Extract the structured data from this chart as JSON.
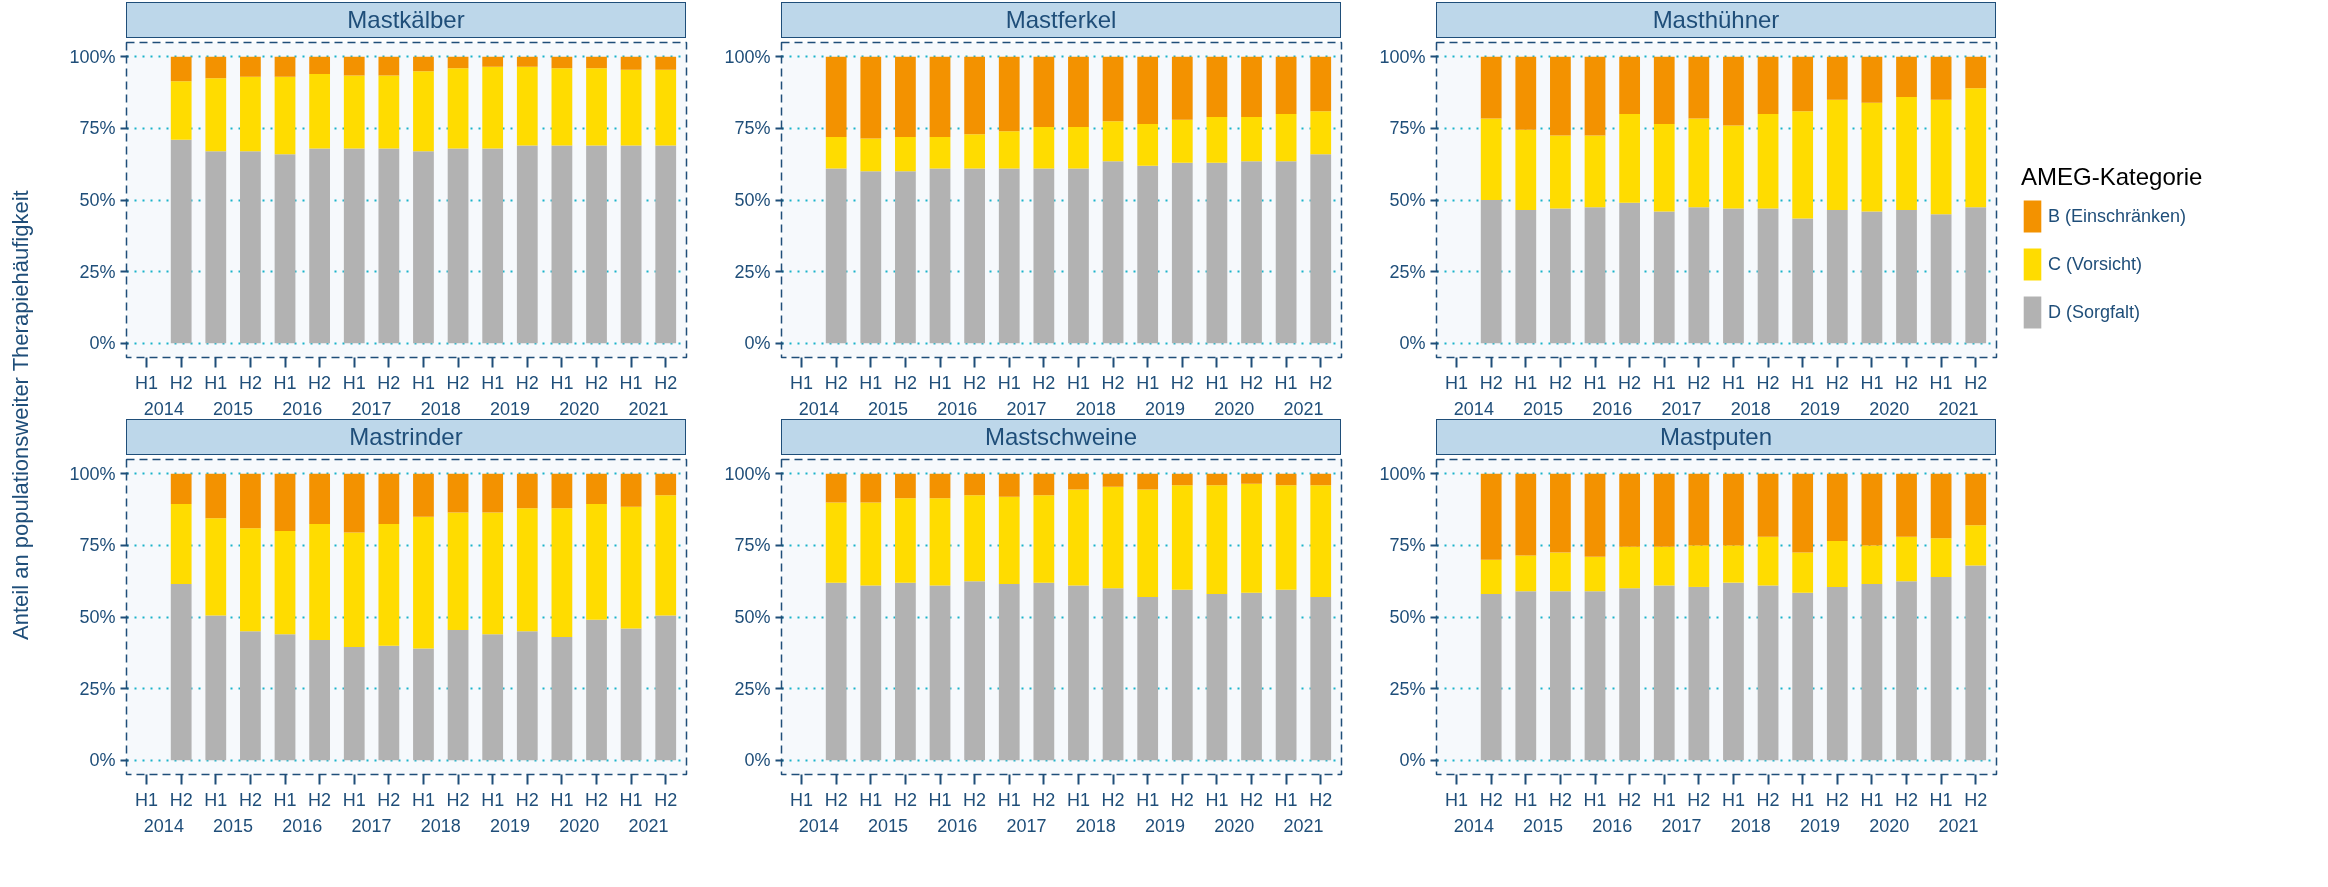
{
  "chart_data": [
    {
      "type": "bar",
      "stacked": true,
      "title": "Mastkälber",
      "ylabel": "Anteil an populationsweiter Therapiehäufigkeit",
      "grid": "y",
      "ylim": [
        -5,
        105
      ],
      "yticks": [
        {
          "value": 0,
          "label": "0%"
        },
        {
          "value": 25,
          "label": "25%"
        },
        {
          "value": 50,
          "label": "50%"
        },
        {
          "value": 75,
          "label": "75%"
        },
        {
          "value": 100,
          "label": "100%"
        }
      ],
      "categories": [
        "H1",
        "H2",
        "H1",
        "H2",
        "H1",
        "H2",
        "H1",
        "H2",
        "H1",
        "H2",
        "H1",
        "H2",
        "H1",
        "H2",
        "H1",
        "H2"
      ],
      "annotations": [
        "2014",
        "2015",
        "2016",
        "2017",
        "2018",
        "2019",
        "2020",
        "2021"
      ],
      "series": [
        {
          "color": "#b2b2b2",
          "values": [
            null,
            71,
            67,
            67,
            66,
            68,
            68,
            68,
            67,
            68,
            68,
            69,
            69,
            69,
            69,
            69
          ]
        },
        {
          "color": "#ffdc00",
          "values": [
            null,
            20.5,
            25.5,
            26,
            27,
            26,
            25.5,
            25.5,
            28,
            28,
            28.5,
            27.5,
            27,
            27,
            26.5,
            26.5
          ]
        },
        {
          "color": "#f39200",
          "values": [
            null,
            8.5,
            7.5,
            7,
            7,
            6,
            6.5,
            6.5,
            5,
            4,
            3.5,
            3.5,
            4,
            4,
            4.5,
            4.5
          ]
        }
      ]
    },
    {
      "type": "bar",
      "stacked": true,
      "title": "Mastferkel",
      "grid": "y",
      "ylim": [
        -5,
        105
      ],
      "yticks": [
        {
          "value": 0,
          "label": "0%"
        },
        {
          "value": 25,
          "label": "25%"
        },
        {
          "value": 50,
          "label": "50%"
        },
        {
          "value": 75,
          "label": "75%"
        },
        {
          "value": 100,
          "label": "100%"
        }
      ],
      "categories": [
        "H1",
        "H2",
        "H1",
        "H2",
        "H1",
        "H2",
        "H1",
        "H2",
        "H1",
        "H2",
        "H1",
        "H2",
        "H1",
        "H2",
        "H1",
        "H2"
      ],
      "annotations": [
        "2014",
        "2015",
        "2016",
        "2017",
        "2018",
        "2019",
        "2020",
        "2021"
      ],
      "series": [
        {
          "color": "#b2b2b2",
          "values": [
            null,
            61,
            60,
            60,
            61,
            61,
            61,
            61,
            61,
            63.5,
            62,
            63,
            63,
            63.5,
            63.5,
            66
          ]
        },
        {
          "color": "#ffdc00",
          "values": [
            null,
            11,
            11.5,
            12,
            11,
            12,
            13,
            14.5,
            14.5,
            14,
            14.5,
            15,
            16,
            15.5,
            16.5,
            15
          ]
        },
        {
          "color": "#f39200",
          "values": [
            null,
            28,
            28.5,
            28,
            28,
            27,
            26,
            24.5,
            24.5,
            22.5,
            23.5,
            22,
            21,
            21,
            20,
            19
          ]
        }
      ]
    },
    {
      "type": "bar",
      "stacked": true,
      "title": "Masthühner",
      "grid": "y",
      "legend": "right",
      "legend_title": "AMEG-Kategorie",
      "ylim": [
        -5,
        105
      ],
      "yticks": [
        {
          "value": 0,
          "label": "0%"
        },
        {
          "value": 25,
          "label": "25%"
        },
        {
          "value": 50,
          "label": "50%"
        },
        {
          "value": 75,
          "label": "75%"
        },
        {
          "value": 100,
          "label": "100%"
        }
      ],
      "categories": [
        "H1",
        "H2",
        "H1",
        "H2",
        "H1",
        "H2",
        "H1",
        "H2",
        "H1",
        "H2",
        "H1",
        "H2",
        "H1",
        "H2",
        "H1",
        "H2"
      ],
      "annotations": [
        "2014",
        "2015",
        "2016",
        "2017",
        "2018",
        "2019",
        "2020",
        "2021"
      ],
      "series": [
        {
          "name": "D (Sorgfalt)",
          "color": "#b2b2b2",
          "values": [
            null,
            50,
            46.5,
            47,
            47.5,
            49,
            46,
            47.5,
            47,
            47,
            43.5,
            46.5,
            46,
            46.5,
            45,
            47.5
          ]
        },
        {
          "name": "C (Vorsicht)",
          "color": "#ffdc00",
          "values": [
            null,
            28.5,
            28,
            25.5,
            25,
            31,
            30.5,
            31,
            29,
            33,
            37.5,
            38.5,
            38,
            39.5,
            40,
            41.5
          ]
        },
        {
          "name": "B (Einschränken)",
          "color": "#f39200",
          "values": [
            null,
            21.5,
            25.5,
            27.5,
            27.5,
            20,
            23.5,
            21.5,
            24,
            20,
            19,
            15,
            16,
            14,
            15,
            11
          ]
        }
      ]
    },
    {
      "type": "bar",
      "stacked": true,
      "title": "Mastrinder",
      "grid": "y",
      "ylim": [
        -5,
        105
      ],
      "yticks": [
        {
          "value": 0,
          "label": "0%"
        },
        {
          "value": 25,
          "label": "25%"
        },
        {
          "value": 50,
          "label": "50%"
        },
        {
          "value": 75,
          "label": "75%"
        },
        {
          "value": 100,
          "label": "100%"
        }
      ],
      "categories": [
        "H1",
        "H2",
        "H1",
        "H2",
        "H1",
        "H2",
        "H1",
        "H2",
        "H1",
        "H2",
        "H1",
        "H2",
        "H1",
        "H2",
        "H1",
        "H2"
      ],
      "annotations": [
        "2014",
        "2015",
        "2016",
        "2017",
        "2018",
        "2019",
        "2020",
        "2021"
      ],
      "series": [
        {
          "color": "#b2b2b2",
          "values": [
            null,
            61.5,
            50.5,
            45,
            44,
            42,
            39.5,
            40,
            39,
            45.5,
            44,
            45,
            43,
            49,
            46,
            50.5
          ]
        },
        {
          "color": "#ffdc00",
          "values": [
            null,
            28,
            34,
            36,
            36,
            40.5,
            40,
            42.5,
            46,
            41,
            42.5,
            43,
            45,
            40.5,
            42.5,
            42
          ]
        },
        {
          "color": "#f39200",
          "values": [
            null,
            10.5,
            15.5,
            19,
            20,
            17.5,
            20.5,
            17.5,
            15,
            13.5,
            13.5,
            12,
            12,
            10.5,
            11.5,
            7.5
          ]
        }
      ]
    },
    {
      "type": "bar",
      "stacked": true,
      "title": "Mastschweine",
      "grid": "y",
      "ylim": [
        -5,
        105
      ],
      "yticks": [
        {
          "value": 0,
          "label": "0%"
        },
        {
          "value": 25,
          "label": "25%"
        },
        {
          "value": 50,
          "label": "50%"
        },
        {
          "value": 75,
          "label": "75%"
        },
        {
          "value": 100,
          "label": "100%"
        }
      ],
      "categories": [
        "H1",
        "H2",
        "H1",
        "H2",
        "H1",
        "H2",
        "H1",
        "H2",
        "H1",
        "H2",
        "H1",
        "H2",
        "H1",
        "H2",
        "H1",
        "H2"
      ],
      "annotations": [
        "2014",
        "2015",
        "2016",
        "2017",
        "2018",
        "2019",
        "2020",
        "2021"
      ],
      "series": [
        {
          "color": "#b2b2b2",
          "values": [
            null,
            62,
            61,
            62,
            61,
            62.5,
            61.5,
            62,
            61,
            60,
            57,
            59.5,
            58,
            58.5,
            59.5,
            57
          ]
        },
        {
          "color": "#ffdc00",
          "values": [
            null,
            28,
            29,
            29.5,
            30.5,
            30,
            30.5,
            30.5,
            33.5,
            35.5,
            37.5,
            36.5,
            38,
            38,
            36.5,
            39
          ]
        },
        {
          "color": "#f39200",
          "values": [
            null,
            10,
            10,
            8.5,
            8.5,
            7.5,
            8,
            7.5,
            5.5,
            4.5,
            5.5,
            4,
            4,
            3.5,
            4,
            4
          ]
        }
      ]
    },
    {
      "type": "bar",
      "stacked": true,
      "title": "Mastputen",
      "grid": "y",
      "ylim": [
        -5,
        105
      ],
      "yticks": [
        {
          "value": 0,
          "label": "0%"
        },
        {
          "value": 25,
          "label": "25%"
        },
        {
          "value": 50,
          "label": "50%"
        },
        {
          "value": 75,
          "label": "75%"
        },
        {
          "value": 100,
          "label": "100%"
        }
      ],
      "categories": [
        "H1",
        "H2",
        "H1",
        "H2",
        "H1",
        "H2",
        "H1",
        "H2",
        "H1",
        "H2",
        "H1",
        "H2",
        "H1",
        "H2",
        "H1",
        "H2"
      ],
      "annotations": [
        "2014",
        "2015",
        "2016",
        "2017",
        "2018",
        "2019",
        "2020",
        "2021"
      ],
      "series": [
        {
          "color": "#b2b2b2",
          "values": [
            null,
            58,
            59,
            59,
            59,
            60,
            61,
            60.5,
            62,
            61,
            58.5,
            60.5,
            61.5,
            62.5,
            64,
            68
          ]
        },
        {
          "color": "#ffdc00",
          "values": [
            null,
            12,
            12.5,
            13.5,
            12,
            14.5,
            13.5,
            14.5,
            13,
            17,
            14,
            16,
            13.5,
            15.5,
            13.5,
            14
          ]
        },
        {
          "color": "#f39200",
          "values": [
            null,
            30,
            28.5,
            27.5,
            29,
            25.5,
            25.5,
            25,
            25,
            22,
            27.5,
            23.5,
            25,
            22,
            22.5,
            18
          ]
        }
      ]
    }
  ]
}
